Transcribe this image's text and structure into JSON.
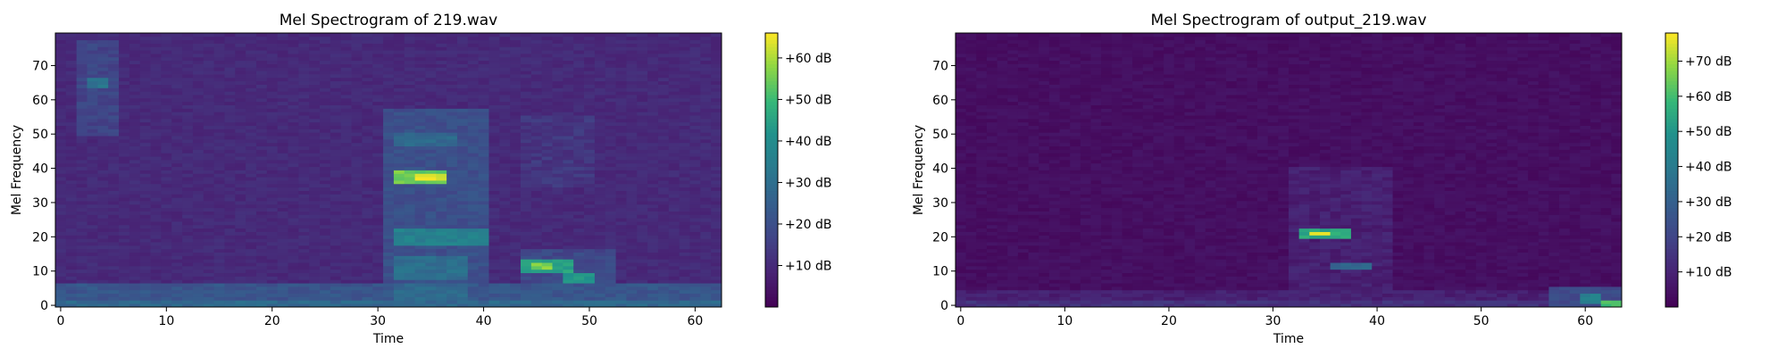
{
  "chart_data": [
    {
      "type": "heatmap",
      "title": "Mel Spectrogram of 219.wav",
      "xlabel": "Time",
      "ylabel": "Mel Frequency",
      "xlim": [
        -0.5,
        62.5
      ],
      "ylim": [
        -0.5,
        79.5
      ],
      "x_ticks": [
        0,
        10,
        20,
        30,
        40,
        50,
        60
      ],
      "y_ticks": [
        0,
        10,
        20,
        30,
        40,
        50,
        60,
        70
      ],
      "colormap": "viridis",
      "colorbar": {
        "ticks": [
          10,
          20,
          30,
          40,
          50,
          60
        ],
        "tick_format": "+{v} dB",
        "range": [
          0,
          66
        ]
      },
      "background_level": 8,
      "features": [
        {
          "t": [
            0,
            62
          ],
          "mel": [
            0,
            6
          ],
          "level": 22
        },
        {
          "t": [
            0,
            62
          ],
          "mel": [
            0,
            1
          ],
          "level": 28
        },
        {
          "t": [
            3,
            4
          ],
          "mel": [
            64,
            66
          ],
          "level": 32
        },
        {
          "t": [
            2,
            5
          ],
          "mel": [
            50,
            77
          ],
          "level": 17
        },
        {
          "t": [
            31,
            40
          ],
          "mel": [
            2,
            57
          ],
          "level": 20
        },
        {
          "t": [
            32,
            36
          ],
          "mel": [
            36,
            39
          ],
          "level": 55
        },
        {
          "t": [
            34,
            36
          ],
          "mel": [
            37,
            38
          ],
          "level": 64
        },
        {
          "t": [
            32,
            40
          ],
          "mel": [
            18,
            22
          ],
          "level": 36
        },
        {
          "t": [
            32,
            38
          ],
          "mel": [
            8,
            14
          ],
          "level": 30
        },
        {
          "t": [
            32,
            38
          ],
          "mel": [
            2,
            6
          ],
          "level": 28
        },
        {
          "t": [
            32,
            37
          ],
          "mel": [
            47,
            50
          ],
          "level": 28
        },
        {
          "t": [
            44,
            48
          ],
          "mel": [
            10,
            13
          ],
          "level": 45
        },
        {
          "t": [
            45,
            46
          ],
          "mel": [
            11,
            12
          ],
          "level": 56
        },
        {
          "t": [
            48,
            50
          ],
          "mel": [
            7,
            9
          ],
          "level": 44
        },
        {
          "t": [
            44,
            52
          ],
          "mel": [
            2,
            16
          ],
          "level": 18
        },
        {
          "t": [
            44,
            50
          ],
          "mel": [
            35,
            55
          ],
          "level": 13
        }
      ]
    },
    {
      "type": "heatmap",
      "title": "Mel Spectrogram of output_219.wav",
      "xlabel": "Time",
      "ylabel": "Mel Frequency",
      "xlim": [
        -0.5,
        63.5
      ],
      "ylim": [
        -0.5,
        79.5
      ],
      "x_ticks": [
        0,
        10,
        20,
        30,
        40,
        50,
        60
      ],
      "y_ticks": [
        0,
        10,
        20,
        30,
        40,
        50,
        60,
        70
      ],
      "colormap": "viridis",
      "colorbar": {
        "ticks": [
          10,
          20,
          30,
          40,
          50,
          60,
          70
        ],
        "tick_format": "+{v} dB",
        "range": [
          0,
          78
        ]
      },
      "background_level": 2,
      "features": [
        {
          "t": [
            0,
            63
          ],
          "mel": [
            0,
            4
          ],
          "level": 9
        },
        {
          "t": [
            0,
            63
          ],
          "mel": [
            0,
            1
          ],
          "level": 14
        },
        {
          "t": [
            32,
            41
          ],
          "mel": [
            5,
            40
          ],
          "level": 9
        },
        {
          "t": [
            33,
            37
          ],
          "mel": [
            20,
            22
          ],
          "level": 55
        },
        {
          "t": [
            34,
            35
          ],
          "mel": [
            21,
            21
          ],
          "level": 76
        },
        {
          "t": [
            36,
            39
          ],
          "mel": [
            11,
            12
          ],
          "level": 32
        },
        {
          "t": [
            57,
            63
          ],
          "mel": [
            0,
            5
          ],
          "level": 22
        },
        {
          "t": [
            60,
            61
          ],
          "mel": [
            1,
            3
          ],
          "level": 42
        },
        {
          "t": [
            62,
            63
          ],
          "mel": [
            0,
            1
          ],
          "level": 60
        }
      ]
    }
  ]
}
